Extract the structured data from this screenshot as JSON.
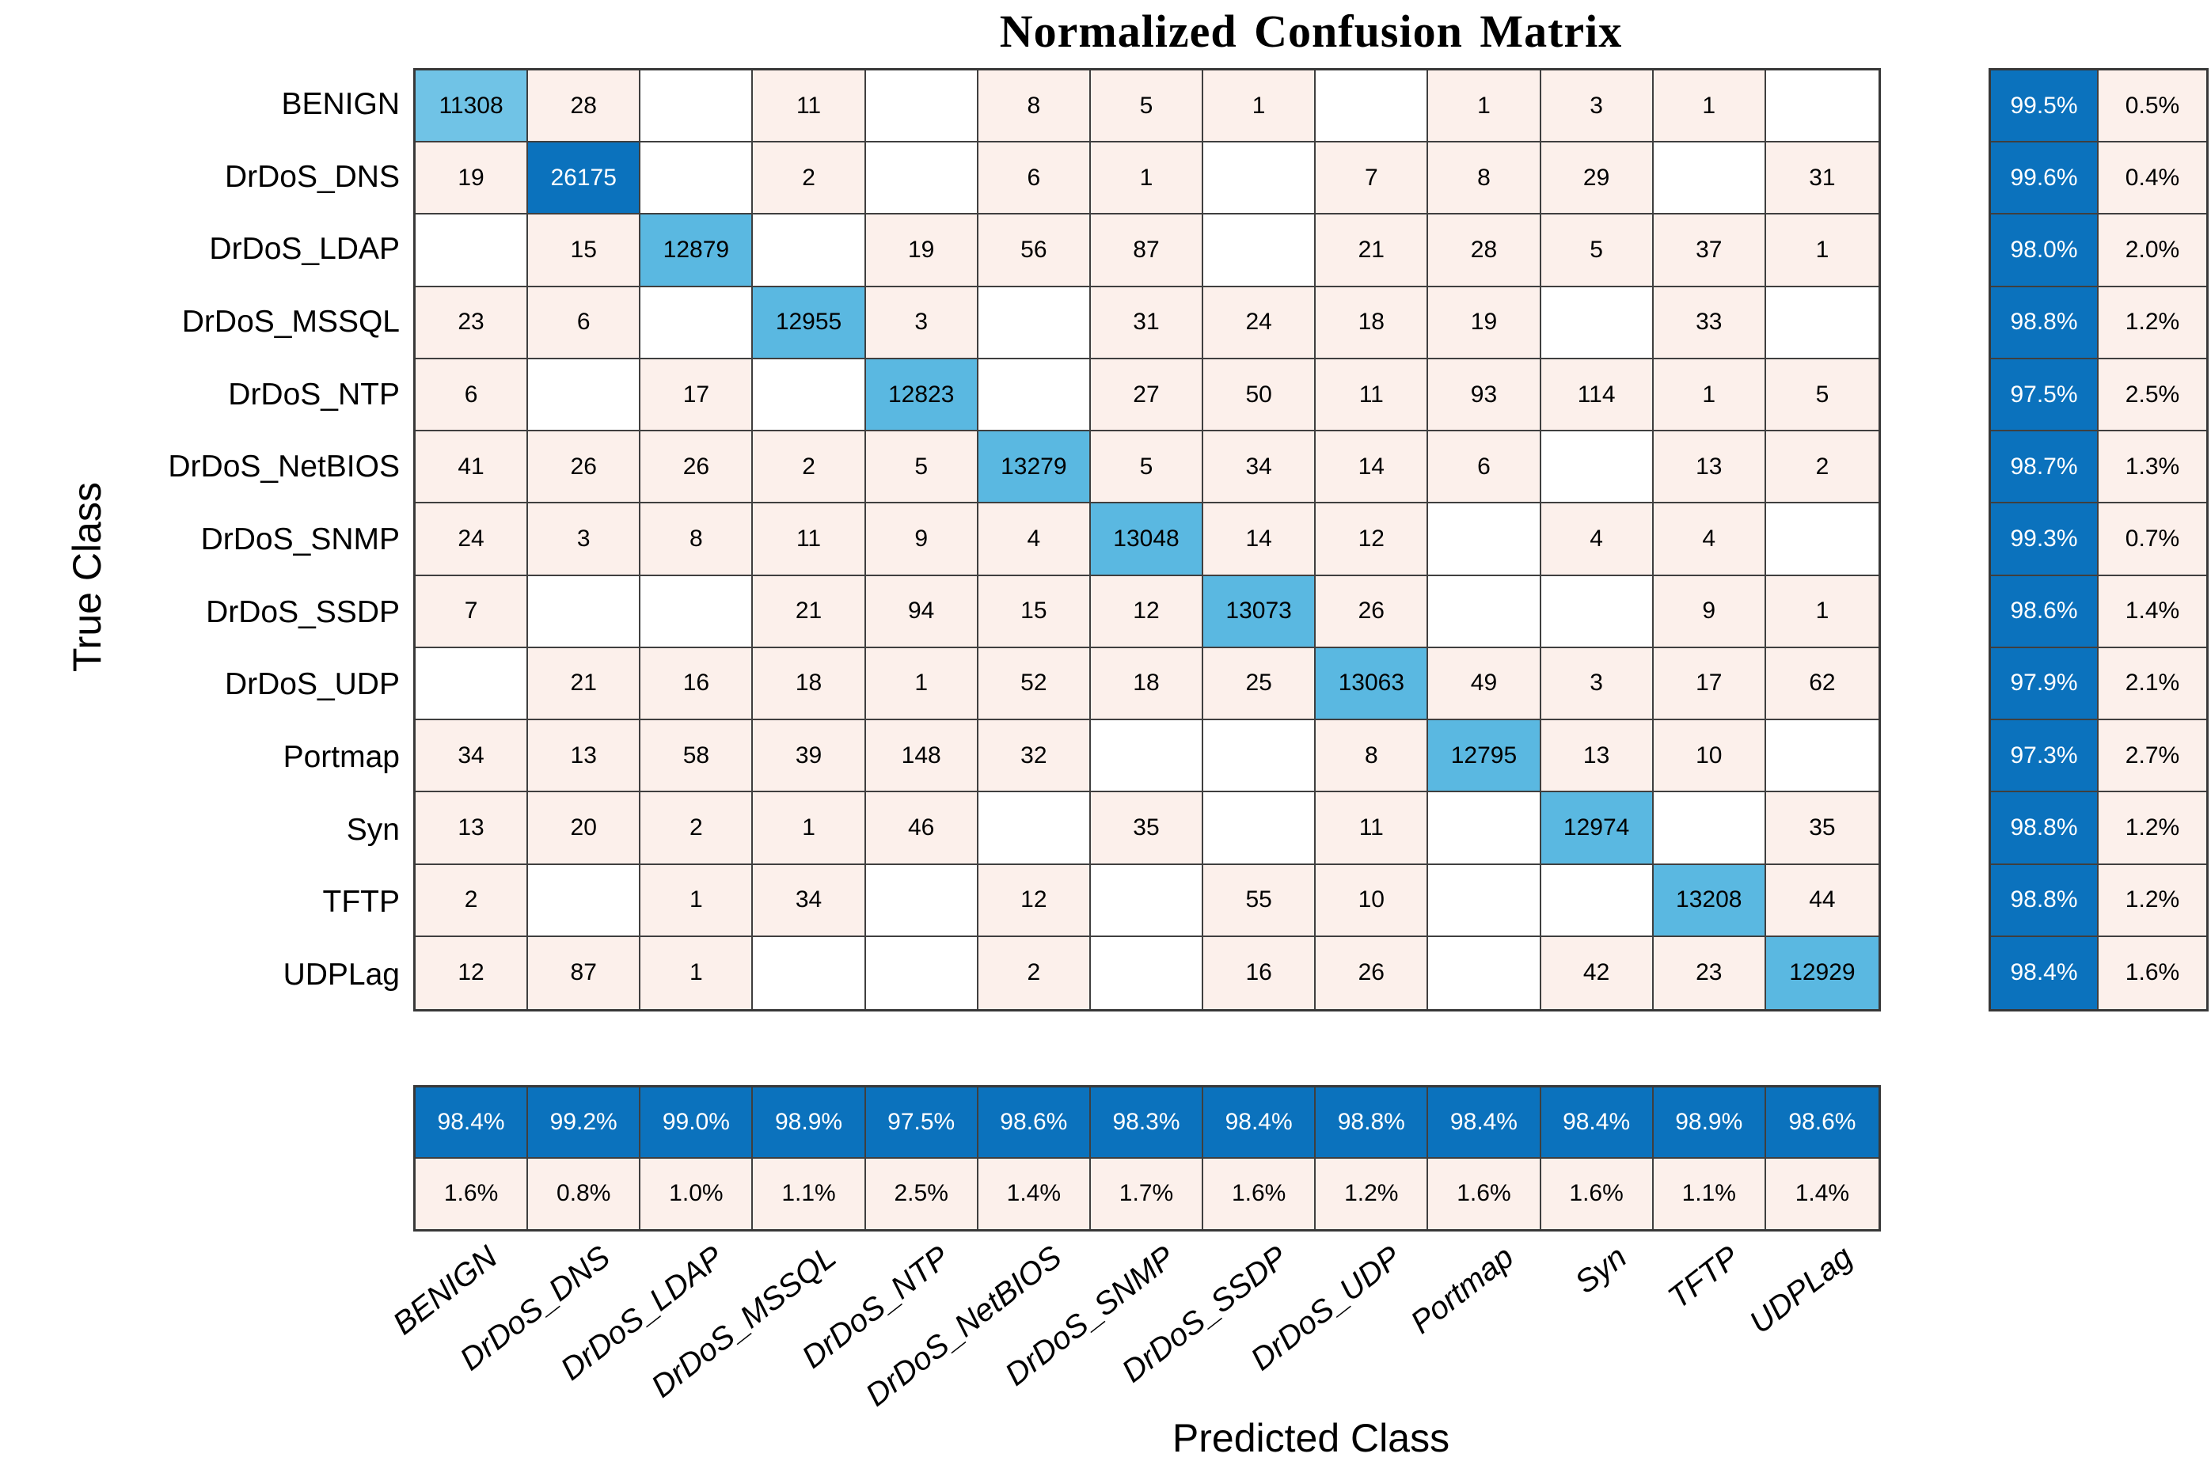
{
  "chart_data": {
    "type": "heatmap",
    "subtype": "confusion-matrix",
    "title": "Normalized Confusion Matrix",
    "xlabel": "Predicted Class",
    "ylabel": "True Class",
    "classes": [
      "BENIGN",
      "DrDoS_DNS",
      "DrDoS_LDAP",
      "DrDoS_MSSQL",
      "DrDoS_NTP",
      "DrDoS_NetBIOS",
      "DrDoS_SNMP",
      "DrDoS_SSDP",
      "DrDoS_UDP",
      "Portmap",
      "Syn",
      "TFTP",
      "UDPLag"
    ],
    "matrix": [
      [
        11308,
        28,
        null,
        11,
        null,
        8,
        5,
        1,
        null,
        1,
        3,
        1,
        null
      ],
      [
        19,
        26175,
        null,
        2,
        null,
        6,
        1,
        null,
        7,
        8,
        29,
        null,
        31
      ],
      [
        null,
        15,
        12879,
        null,
        19,
        56,
        87,
        null,
        21,
        28,
        5,
        37,
        1
      ],
      [
        23,
        6,
        null,
        12955,
        3,
        null,
        31,
        24,
        18,
        19,
        null,
        33,
        null
      ],
      [
        6,
        null,
        17,
        null,
        12823,
        null,
        27,
        50,
        11,
        93,
        114,
        1,
        5
      ],
      [
        41,
        26,
        26,
        2,
        5,
        13279,
        5,
        34,
        14,
        6,
        null,
        13,
        2
      ],
      [
        24,
        3,
        8,
        11,
        9,
        4,
        13048,
        14,
        12,
        null,
        4,
        4,
        null
      ],
      [
        7,
        null,
        null,
        21,
        94,
        15,
        12,
        13073,
        26,
        null,
        null,
        9,
        1
      ],
      [
        null,
        21,
        16,
        18,
        1,
        52,
        18,
        25,
        13063,
        49,
        3,
        17,
        62
      ],
      [
        34,
        13,
        58,
        39,
        148,
        32,
        null,
        null,
        8,
        12795,
        13,
        10,
        null
      ],
      [
        13,
        20,
        2,
        1,
        46,
        null,
        35,
        null,
        11,
        null,
        12974,
        null,
        35
      ],
      [
        2,
        null,
        1,
        34,
        null,
        12,
        null,
        55,
        10,
        null,
        null,
        13208,
        44
      ],
      [
        12,
        87,
        1,
        null,
        null,
        2,
        null,
        16,
        26,
        null,
        42,
        23,
        12929
      ]
    ],
    "row_summary": {
      "recall": [
        "99.5%",
        "99.6%",
        "98.0%",
        "98.8%",
        "97.5%",
        "98.7%",
        "99.3%",
        "98.6%",
        "97.9%",
        "97.3%",
        "98.8%",
        "98.8%",
        "98.4%"
      ],
      "fnr": [
        "0.5%",
        "0.4%",
        "2.0%",
        "1.2%",
        "2.5%",
        "1.3%",
        "0.7%",
        "1.4%",
        "2.1%",
        "2.7%",
        "1.2%",
        "1.2%",
        "1.6%"
      ]
    },
    "col_summary": {
      "precision": [
        "98.4%",
        "99.2%",
        "99.0%",
        "98.9%",
        "97.5%",
        "98.6%",
        "98.3%",
        "98.4%",
        "98.8%",
        "98.4%",
        "98.4%",
        "98.9%",
        "98.6%"
      ],
      "fdr": [
        "1.6%",
        "0.8%",
        "1.0%",
        "1.1%",
        "2.5%",
        "1.4%",
        "1.7%",
        "1.6%",
        "1.2%",
        "1.6%",
        "1.6%",
        "1.1%",
        "1.4%"
      ]
    },
    "colors": {
      "diagonal_dark": "#0B72BD",
      "diagonal_light": "#5AB8E1",
      "diagonal_lighter": "#70C3E6",
      "off_diagonal": "#FCF0EB",
      "empty": "#FFFFFF",
      "grid_line": "#3F3F3F",
      "text_on_dark": "#FFFFFF",
      "text_on_light": "#000000"
    },
    "layout": {
      "grid": "on",
      "x_tick_rotation_deg": -38,
      "row_summary_position": "right",
      "col_summary_position": "bottom"
    }
  }
}
